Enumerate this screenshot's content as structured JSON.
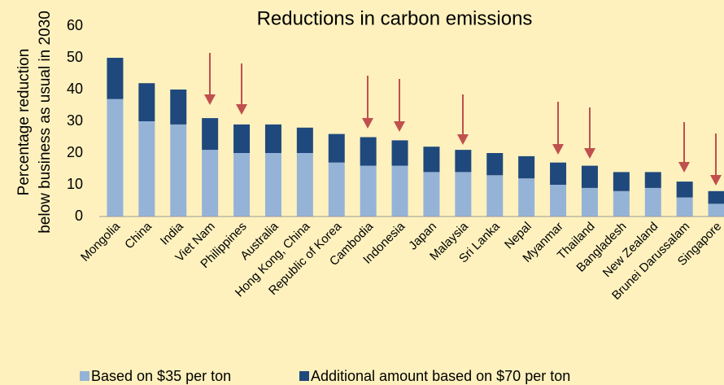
{
  "chart_data": {
    "type": "stacked_bar",
    "title": "Reductions in carbon emissions",
    "y_label": [
      "Percentage reduction",
      "below business as usual in 2030"
    ],
    "categories": [
      "Mongolia",
      "China",
      "India",
      "Viet Nam",
      "Philippines",
      "Australia",
      "Hong Kong, China",
      "Republic of Korea",
      "Cambodia",
      "Indonesia",
      "Japan",
      "Malaysia",
      "Sri Lanka",
      "Nepal",
      "Myanmar",
      "Thailand",
      "Bangladesh",
      "New Zealand",
      "Brunei Darussalam",
      "Singapore"
    ],
    "series": [
      {
        "name": "Based on $35 per ton",
        "color": "#95b3d7",
        "values": [
          37,
          30,
          29,
          21,
          20,
          20,
          20,
          17,
          16,
          16,
          14,
          14,
          13,
          12,
          10,
          9,
          8,
          9,
          6,
          4
        ]
      },
      {
        "name": "Additional amount based on $70 per ton",
        "color": "#1f497d",
        "values": [
          13,
          12,
          11,
          10,
          9,
          9,
          8,
          9,
          9,
          8,
          8,
          7,
          7,
          7,
          7,
          7,
          6,
          5,
          5,
          4
        ]
      }
    ],
    "ylim": [
      0,
      60
    ],
    "yticks": [
      0,
      10,
      20,
      30,
      40,
      50,
      60
    ],
    "legend": "bottom"
  }
}
